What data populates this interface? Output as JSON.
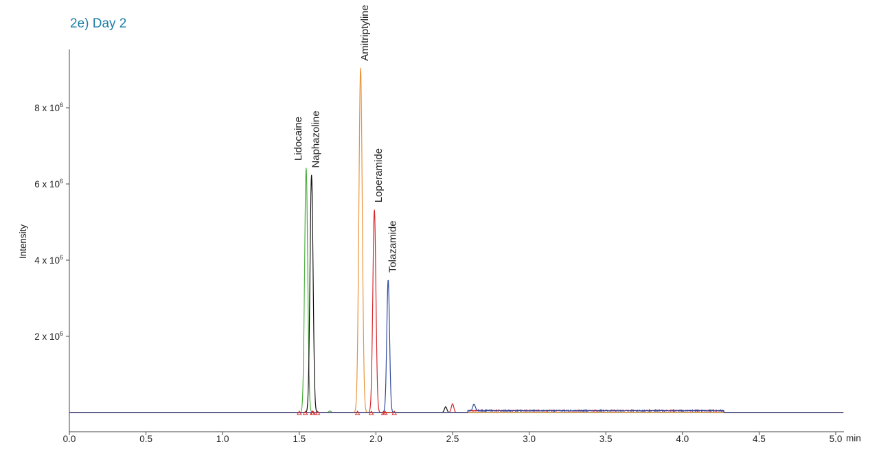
{
  "panel_title": "2e) Day 2",
  "chart_data": {
    "type": "line",
    "title": "2e) Day 2",
    "xlabel": "",
    "x_unit": "min",
    "ylabel": "Intensity",
    "xlim": [
      0.0,
      5.05
    ],
    "ylim": [
      -500000,
      9500000
    ],
    "grid": false,
    "x_ticks": [
      {
        "value": 0.0,
        "label": "0.0"
      },
      {
        "value": 0.5,
        "label": "0.5"
      },
      {
        "value": 1.0,
        "label": "1.0"
      },
      {
        "value": 1.5,
        "label": "1.5"
      },
      {
        "value": 2.0,
        "label": "2.0"
      },
      {
        "value": 2.5,
        "label": "2.5"
      },
      {
        "value": 3.0,
        "label": "3.0"
      },
      {
        "value": 3.5,
        "label": "3.5"
      },
      {
        "value": 4.0,
        "label": "4.0"
      },
      {
        "value": 4.5,
        "label": "4.5"
      },
      {
        "value": 5.0,
        "label": "5.0"
      }
    ],
    "y_ticks": [
      {
        "value": 2000000,
        "mantissa": "2 x 10",
        "exp": "6"
      },
      {
        "value": 4000000,
        "mantissa": "4 x 10",
        "exp": "6"
      },
      {
        "value": 6000000,
        "mantissa": "6 x 10",
        "exp": "6"
      },
      {
        "value": 8000000,
        "mantissa": "8 x 10",
        "exp": "6"
      }
    ],
    "series": [
      {
        "name": "Lidocaine",
        "color": "#4cae3f",
        "peak_x": 1.545,
        "peak_y": 6430000,
        "width": 0.01
      },
      {
        "name": "Naphazoline",
        "color": "#111111",
        "peak_x": 1.58,
        "peak_y": 6240000,
        "width": 0.01
      },
      {
        "name": "Amitriptyline",
        "color": "#e8943a",
        "peak_x": 1.9,
        "peak_y": 9050000,
        "width": 0.011
      },
      {
        "name": "Loperamide",
        "color": "#d7262b",
        "peak_x": 1.99,
        "peak_y": 5330000,
        "width": 0.01
      },
      {
        "name": "Tolazamide",
        "color": "#2e4a9e",
        "peak_x": 2.08,
        "peak_y": 3490000,
        "width": 0.009
      }
    ],
    "minor_peaks": [
      {
        "color": "#111111",
        "x": 2.455,
        "y": 150000
      },
      {
        "color": "#d7262b",
        "x": 2.5,
        "y": 230000
      },
      {
        "color": "#2e4a9e",
        "x": 2.64,
        "y": 170000
      },
      {
        "color": "#4cae3f",
        "x": 1.7,
        "y": 40000
      }
    ],
    "baseline_noise": {
      "x_start": 2.6,
      "x_end": 4.27,
      "level": 50000
    },
    "integration_markers": [
      1.5,
      1.54,
      1.585,
      1.59,
      1.62,
      1.88,
      1.97,
      2.05,
      2.06,
      2.12
    ],
    "marker_color": "#d7262b"
  }
}
